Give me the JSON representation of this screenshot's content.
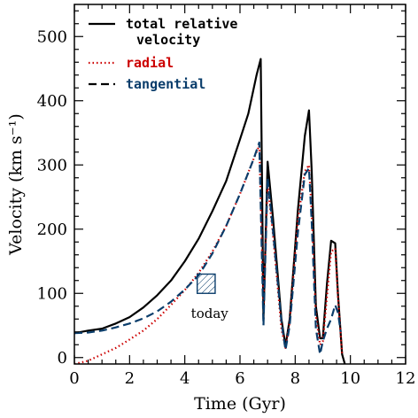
{
  "chart_data": {
    "type": "line",
    "xlabel": "Time (Gyr)",
    "ylabel": "Velocity (km s⁻¹)",
    "xlim": [
      0,
      12
    ],
    "ylim": [
      -10,
      550
    ],
    "xticks": [
      0,
      2,
      4,
      6,
      8,
      10,
      12
    ],
    "yticks": [
      0,
      100,
      200,
      300,
      400,
      500
    ],
    "grid": false,
    "legend_position": "top-left",
    "series": [
      {
        "name": "total relative velocity",
        "name_lines": [
          "total relative",
          "velocity"
        ],
        "color": "#000000",
        "style": "solid",
        "x": [
          0,
          0.5,
          1,
          1.5,
          2,
          2.5,
          3,
          3.5,
          4,
          4.5,
          5,
          5.5,
          6,
          6.3,
          6.6,
          6.75,
          6.85,
          7.0,
          7.2,
          7.5,
          7.65,
          7.8,
          8.1,
          8.35,
          8.5,
          8.6,
          8.75,
          8.9,
          9.0,
          9.15,
          9.3,
          9.45,
          9.55,
          9.7,
          9.8
        ],
        "y": [
          38,
          42,
          45,
          53,
          63,
          78,
          97,
          120,
          150,
          185,
          228,
          275,
          340,
          380,
          440,
          465,
          60,
          305,
          215,
          60,
          18,
          60,
          230,
          345,
          385,
          290,
          80,
          30,
          30,
          115,
          182,
          178,
          100,
          5,
          -10
        ]
      },
      {
        "name": "radial",
        "color": "#cc0000",
        "style": "dotted",
        "x": [
          0,
          0.5,
          1,
          1.5,
          2,
          2.5,
          3,
          3.5,
          4,
          4.5,
          5,
          5.5,
          6,
          6.5,
          6.7,
          6.85,
          7.0,
          7.2,
          7.5,
          7.65,
          7.8,
          8.1,
          8.35,
          8.5,
          8.6,
          8.75,
          8.9,
          9.0,
          9.15,
          9.3,
          9.45,
          9.55,
          9.7
        ],
        "y": [
          -10,
          -5,
          5,
          15,
          28,
          42,
          60,
          82,
          105,
          132,
          165,
          205,
          255,
          310,
          330,
          80,
          270,
          190,
          45,
          15,
          55,
          215,
          290,
          300,
          225,
          65,
          20,
          25,
          95,
          165,
          170,
          95,
          5
        ]
      },
      {
        "name": "tangential",
        "color": "#0a3d6b",
        "style": "dashed",
        "x": [
          0,
          0.5,
          1,
          1.5,
          2,
          2.5,
          3,
          3.5,
          4,
          4.5,
          5,
          5.5,
          6,
          6.5,
          6.7,
          6.85,
          7.0,
          7.2,
          7.5,
          7.65,
          7.8,
          8.1,
          8.35,
          8.5,
          8.6,
          8.75,
          8.9,
          9.0,
          9.15,
          9.3,
          9.45,
          9.55,
          9.65
        ],
        "y": [
          38,
          39,
          42,
          47,
          53,
          61,
          72,
          87,
          106,
          128,
          162,
          205,
          255,
          310,
          335,
          50,
          280,
          195,
          55,
          12,
          50,
          195,
          285,
          295,
          210,
          45,
          5,
          25,
          45,
          60,
          82,
          70,
          40
        ]
      }
    ],
    "annotations": [
      {
        "text": "today",
        "x": 4.9,
        "y": 62,
        "color": "#0a3d6b"
      }
    ],
    "highlight_box": {
      "x": [
        4.45,
        5.1
      ],
      "y": [
        100,
        130
      ],
      "color": "#0a3d6b",
      "fill": "hatched"
    }
  }
}
